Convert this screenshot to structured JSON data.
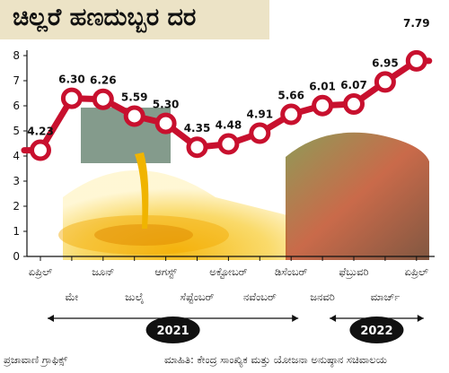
{
  "title": "ಚಿಲ್ಲರೆ ಹಣದುಬ್ಬರ ದರ",
  "footer": {
    "credit": "ಪ್ರಜಾವಾಣಿ ಗ್ರಾಫಿಕ್ಸ್",
    "source": "ಮಾಹಿತಿ: ಕೇಂದ್ರ ಸಾಂಖ್ಯಿಕ ಮತ್ತು ಯೋಜನಾ ಅನುಷ್ಠಾನ ಸಚಿವಾಲಯ"
  },
  "colors": {
    "line": "#c8102e",
    "marker_fill": "#ffffff",
    "title_bg": "#ece3c6",
    "year_badge": "#111111"
  },
  "chart_data": {
    "type": "line",
    "categories": [
      "ಏಪ್ರಿಲ್",
      "ಮೇ",
      "ಜೂನ್",
      "ಜುಲೈ",
      "ಆಗಸ್ಟ್",
      "ಸೆಪ್ಟೆಂಬರ್",
      "ಅಕ್ಟೋಬರ್",
      "ನವೆಂಬರ್",
      "ಡಿಸೆಂಬರ್",
      "ಜನವರಿ",
      "ಫೆಬ್ರುವರಿ",
      "ಮಾರ್ಚ್",
      "ಏಪ್ರಿಲ್"
    ],
    "values": [
      4.23,
      6.3,
      6.26,
      5.59,
      5.3,
      4.35,
      4.48,
      4.91,
      5.66,
      6.01,
      6.07,
      6.95,
      7.79
    ],
    "value_labels": [
      "4.23",
      "6.30",
      "6.26",
      "5.59",
      "5.30",
      "4.35",
      "4.48",
      "4.91",
      "5.66",
      "6.01",
      "6.07",
      "6.95",
      "7.79"
    ],
    "y_ticks": [
      "0",
      "1",
      "2",
      "3",
      "4",
      "5",
      "6",
      "7",
      "8"
    ],
    "ylim": [
      0,
      8
    ],
    "years": [
      {
        "label": "2021",
        "span": [
          0,
          8
        ]
      },
      {
        "label": "2022",
        "span": [
          9,
          12
        ]
      }
    ]
  }
}
